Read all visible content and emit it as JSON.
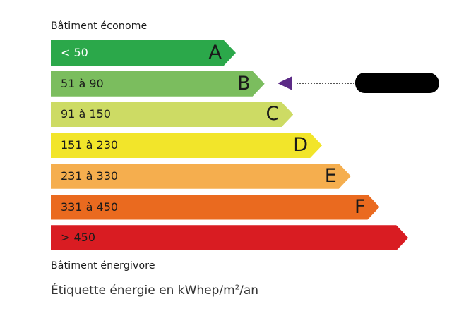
{
  "top_label": "Bâtiment économe",
  "bottom_label": "Bâtiment énergivore",
  "caption": {
    "prefix": "Étiquette énergie en kWhep/m",
    "sup": "2",
    "suffix": "/an"
  },
  "classes": [
    {
      "letter": "A",
      "range": "< 50",
      "color": "#2ba84a",
      "text_color": "#ffffff"
    },
    {
      "letter": "B",
      "range": "51 à 90",
      "color": "#7bbd5e",
      "text_color": "#1a1a1a"
    },
    {
      "letter": "C",
      "range": "91 à 150",
      "color": "#cddb64",
      "text_color": "#1a1a1a"
    },
    {
      "letter": "D",
      "range": "151 à 230",
      "color": "#f2e52a",
      "text_color": "#1a1a1a"
    },
    {
      "letter": "E",
      "range": "231 à 330",
      "color": "#f5ae4e",
      "text_color": "#1a1a1a"
    },
    {
      "letter": "F",
      "range": "331 à 450",
      "color": "#ea6a1f",
      "text_color": "#1a1a1a"
    },
    {
      "letter": "",
      "range": "> 450",
      "color": "#d91c22",
      "text_color": "#1a1a1a"
    }
  ],
  "current_class": "B",
  "pointer_color": "#5b2a86"
}
